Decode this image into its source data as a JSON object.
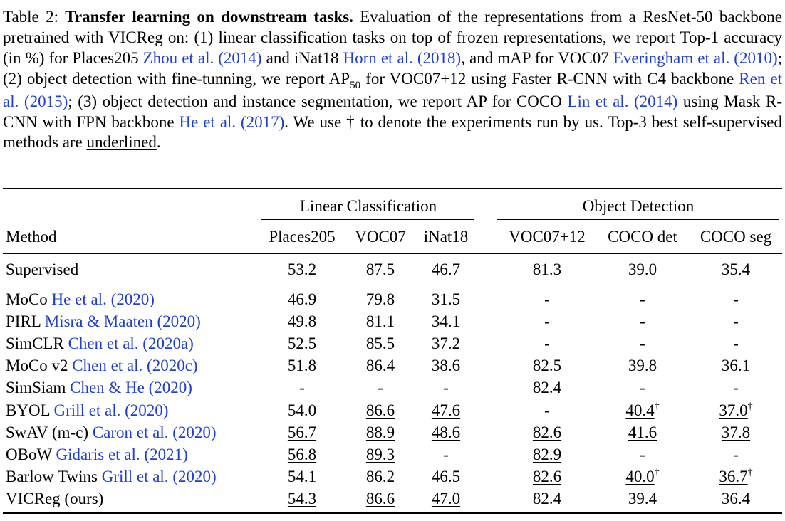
{
  "caption": {
    "label": "Table 2:",
    "title": "Transfer learning on downstream tasks.",
    "text": [
      " Evaluation of the representations from a ResNet-50 backbone pretrained with VICReg on: (1) linear classification tasks on top of frozen representations, we report Top-1 accuracy (in %) for Places205 ",
      {
        "cite": "Zhou et al. (2014)"
      },
      " and iNat18 ",
      {
        "cite": "Horn et al. (2018)"
      },
      ", and mAP for VOC07 ",
      {
        "cite": "Everingham et al. (2010)"
      },
      "; (2) object detection with fine-tunning, we report AP",
      {
        "sub": "50"
      },
      " for VOC07+12 using Faster R-CNN with C4 backbone ",
      {
        "cite": "Ren et al. (2015)"
      },
      "; (3) object detection and instance segmentation, we report AP for COCO ",
      {
        "cite": "Lin et al. (2014)"
      },
      " using Mask R-CNN with FPN backbone ",
      {
        "cite": "He et al. (2017)"
      },
      ". We use † to denote the experiments run by us. Top-3 best self-supervised methods are ",
      {
        "underline": "underlined"
      },
      "."
    ]
  },
  "table": {
    "group_headers": [
      "Linear Classification",
      "Object Detection"
    ],
    "columns": [
      "Method",
      "Places205",
      "VOC07",
      "iNat18",
      "VOC07+12",
      "COCO det",
      "COCO seg"
    ],
    "supervised": {
      "method": "Supervised",
      "values": [
        {
          "v": "53.2"
        },
        {
          "v": "87.5"
        },
        {
          "v": "46.7"
        },
        {
          "v": "81.3"
        },
        {
          "v": "39.0"
        },
        {
          "v": "35.4"
        }
      ]
    },
    "rows": [
      {
        "name": "MoCo",
        "cite": "He et al. (2020)",
        "values": [
          {
            "v": "46.9"
          },
          {
            "v": "79.8"
          },
          {
            "v": "31.5"
          },
          {
            "v": "-"
          },
          {
            "v": "-"
          },
          {
            "v": "-"
          }
        ]
      },
      {
        "name": "PIRL",
        "cite": "Misra & Maaten (2020)",
        "values": [
          {
            "v": "49.8"
          },
          {
            "v": "81.1"
          },
          {
            "v": "34.1"
          },
          {
            "v": "-"
          },
          {
            "v": "-"
          },
          {
            "v": "-"
          }
        ]
      },
      {
        "name": "SimCLR",
        "cite": "Chen et al. (2020a)",
        "values": [
          {
            "v": "52.5"
          },
          {
            "v": "85.5"
          },
          {
            "v": "37.2"
          },
          {
            "v": "-"
          },
          {
            "v": "-"
          },
          {
            "v": "-"
          }
        ]
      },
      {
        "name": "MoCo v2",
        "cite": "Chen et al. (2020c)",
        "values": [
          {
            "v": "51.8"
          },
          {
            "v": "86.4"
          },
          {
            "v": "38.6"
          },
          {
            "v": "82.5"
          },
          {
            "v": "39.8"
          },
          {
            "v": "36.1"
          }
        ]
      },
      {
        "name": "SimSiam",
        "cite": "Chen & He (2020)",
        "values": [
          {
            "v": "-"
          },
          {
            "v": "-"
          },
          {
            "v": "-"
          },
          {
            "v": "82.4"
          },
          {
            "v": "-"
          },
          {
            "v": "-"
          }
        ]
      },
      {
        "name": "BYOL",
        "cite": "Grill et al. (2020)",
        "values": [
          {
            "v": "54.0"
          },
          {
            "v": "86.6",
            "u": true
          },
          {
            "v": "47.6",
            "u": true
          },
          {
            "v": "-"
          },
          {
            "v": "40.4",
            "u": true,
            "dag": "†"
          },
          {
            "v": "37.0",
            "u": true,
            "dag": "†"
          }
        ]
      },
      {
        "name": "SwAV (m-c)",
        "cite": "Caron et al. (2020)",
        "values": [
          {
            "v": "56.7",
            "u": true
          },
          {
            "v": "88.9",
            "u": true
          },
          {
            "v": "48.6",
            "u": true
          },
          {
            "v": "82.6",
            "u": true
          },
          {
            "v": "41.6",
            "u": true
          },
          {
            "v": "37.8",
            "u": true
          }
        ]
      },
      {
        "name": "OBoW",
        "cite": "Gidaris et al. (2021)",
        "values": [
          {
            "v": "56.8",
            "u": true
          },
          {
            "v": "89.3",
            "u": true
          },
          {
            "v": "-"
          },
          {
            "v": "82.9",
            "u": true
          },
          {
            "v": "-"
          },
          {
            "v": "-"
          }
        ]
      },
      {
        "name": "Barlow Twins",
        "cite": "Grill et al. (2020)",
        "values": [
          {
            "v": "54.1"
          },
          {
            "v": "86.2"
          },
          {
            "v": "46.5"
          },
          {
            "v": "82.6",
            "u": true
          },
          {
            "v": "40.0",
            "u": true,
            "dag": "†"
          },
          {
            "v": "36.7",
            "u": true,
            "dag": "†"
          }
        ]
      },
      {
        "name": "VICReg (ours)",
        "cite": "",
        "values": [
          {
            "v": "54.3",
            "u": true
          },
          {
            "v": "86.6",
            "u": true
          },
          {
            "v": "47.0",
            "u": true
          },
          {
            "v": "82.4"
          },
          {
            "v": "39.4"
          },
          {
            "v": "36.4"
          }
        ]
      }
    ]
  }
}
